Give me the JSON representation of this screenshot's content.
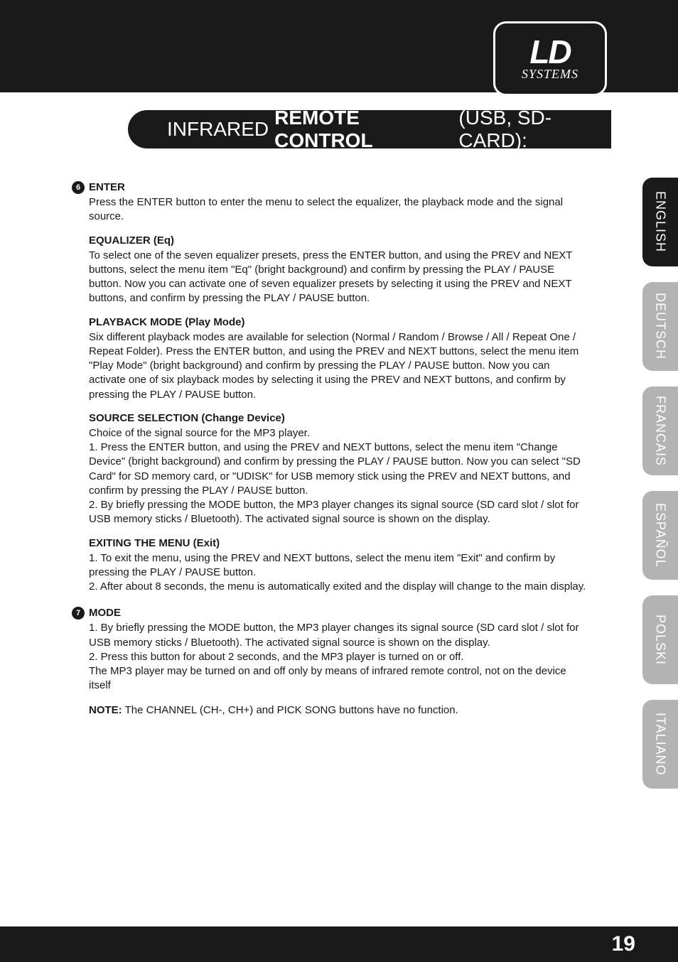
{
  "logo": {
    "top": "LD",
    "bottom": "SYSTEMS"
  },
  "title": {
    "prefix": "INFRARED",
    "main": "REMOTE CONTROL",
    "suffix": "(USB, SD-CARD):"
  },
  "colors": {
    "header_bg": "#1a1a1a",
    "page_bg": "#ffffff",
    "tab_inactive": "#b3b3b3",
    "tab_active": "#1a1a1a",
    "text": "#1a1a1a"
  },
  "sections": [
    {
      "num": "6",
      "heading": "ENTER",
      "intro": "Press the ENTER button to enter the menu to select the equalizer, the playback mode and the signal source.",
      "subs": [
        {
          "h": "EQUALIZER (Eq)",
          "p": "To select one of the seven equalizer presets, press the ENTER button, and using the PREV and NEXT buttons, select the menu item \"Eq\" (bright background) and confirm by pressing the PLAY / PAUSE button. Now you can activate one of seven equalizer presets by selecting it using the PREV and NEXT buttons, and confirm by pressing the PLAY / PAUSE button."
        },
        {
          "h": "PLAYBACK MODE (Play Mode)",
          "p": "Six different playback modes are available for selection (Normal / Random / Browse / All / Repeat One / Repeat Folder). Press the ENTER button, and using the PREV and NEXT buttons, select the menu item \"Play Mode\" (bright background) and confirm by pressing the PLAY / PAUSE button. Now you can activate one of six playback modes by selecting it using the PREV and NEXT buttons, and confirm by pressing the PLAY / PAUSE button."
        },
        {
          "h": "SOURCE SELECTION (Change Device)",
          "p": "Choice of the signal source for the MP3 player.\n1. Press the ENTER button, and using the PREV and NEXT buttons, select the menu item \"Change Device\" (bright background) and confirm by pressing the PLAY / PAUSE button. Now you can select \"SD Card\" for SD memory card, or \"UDISK\" for USB memory stick using the PREV and NEXT buttons, and confirm by pressing the PLAY / PAUSE button.\n2. By briefly pressing the MODE button, the MP3 player changes its signal source (SD card slot / slot for USB memory sticks / Bluetooth). The activated signal source is shown on the display."
        },
        {
          "h": "EXITING THE MENU (Exit)",
          "p": "1. To exit the menu, using the PREV and NEXT buttons, select the menu item \"Exit\" and confirm by pressing the PLAY / PAUSE button.\n2. After about 8 seconds, the menu is automatically exited and the display will change to the main display."
        }
      ]
    },
    {
      "num": "7",
      "heading": "MODE",
      "intro": "1. By briefly pressing the MODE button, the MP3 player changes its signal source (SD card slot / slot for USB memory sticks / Bluetooth). The activated signal source is shown on the display.\n2. Press this button for about 2 seconds, and the MP3 player is turned on or off.\nThe MP3 player may be turned on and off only by means of infrared remote control, not on the device itself",
      "subs": []
    }
  ],
  "note_label": "NOTE:",
  "note_text": " The CHANNEL (CH-, CH+) and PICK SONG buttons have no function.",
  "languages": [
    {
      "label": "ENGLISH",
      "active": true
    },
    {
      "label": "DEUTSCH",
      "active": false
    },
    {
      "label": "FRANCAIS",
      "active": false
    },
    {
      "label": "ESPAÑOL",
      "active": false
    },
    {
      "label": "POLSKI",
      "active": false
    },
    {
      "label": "ITALIANO",
      "active": false
    }
  ],
  "page_number": "19"
}
